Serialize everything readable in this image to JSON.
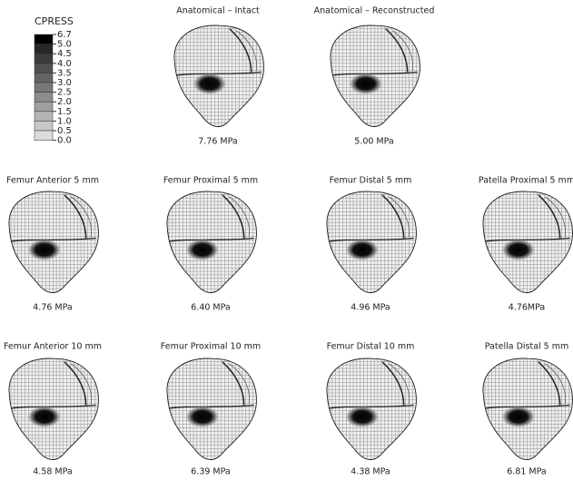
{
  "legend": {
    "title": "CPRESS",
    "labels": [
      "6.7",
      "5.0",
      "4.5",
      "4.0",
      "3.5",
      "3.0",
      "2.5",
      "2.0",
      "1.5",
      "1.0",
      "0.5",
      "0.0"
    ]
  },
  "panels": [
    {
      "title": "Anatomical – Intact",
      "value": "7.76 MPa"
    },
    {
      "title": "Anatomical – Reconstructed",
      "value": "5.00 MPa"
    },
    {
      "title": "Femur Anterior 5 mm",
      "value": "4.76 MPa"
    },
    {
      "title": "Femur Proximal 5 mm",
      "value": "6.40 MPa"
    },
    {
      "title": "Femur Distal 5 mm",
      "value": "4.96 MPa"
    },
    {
      "title": "Patella Proximal 5 mm",
      "value": "4.76MPa"
    },
    {
      "title": "Femur Anterior 10 mm",
      "value": "4.58 MPa"
    },
    {
      "title": "Femur Proximal 10 mm",
      "value": "6.39 MPa"
    },
    {
      "title": "Femur Distal 10 mm",
      "value": "4.38 MPa"
    },
    {
      "title": "Patella Distal 5 mm",
      "value": "6.81 MPa"
    }
  ]
}
